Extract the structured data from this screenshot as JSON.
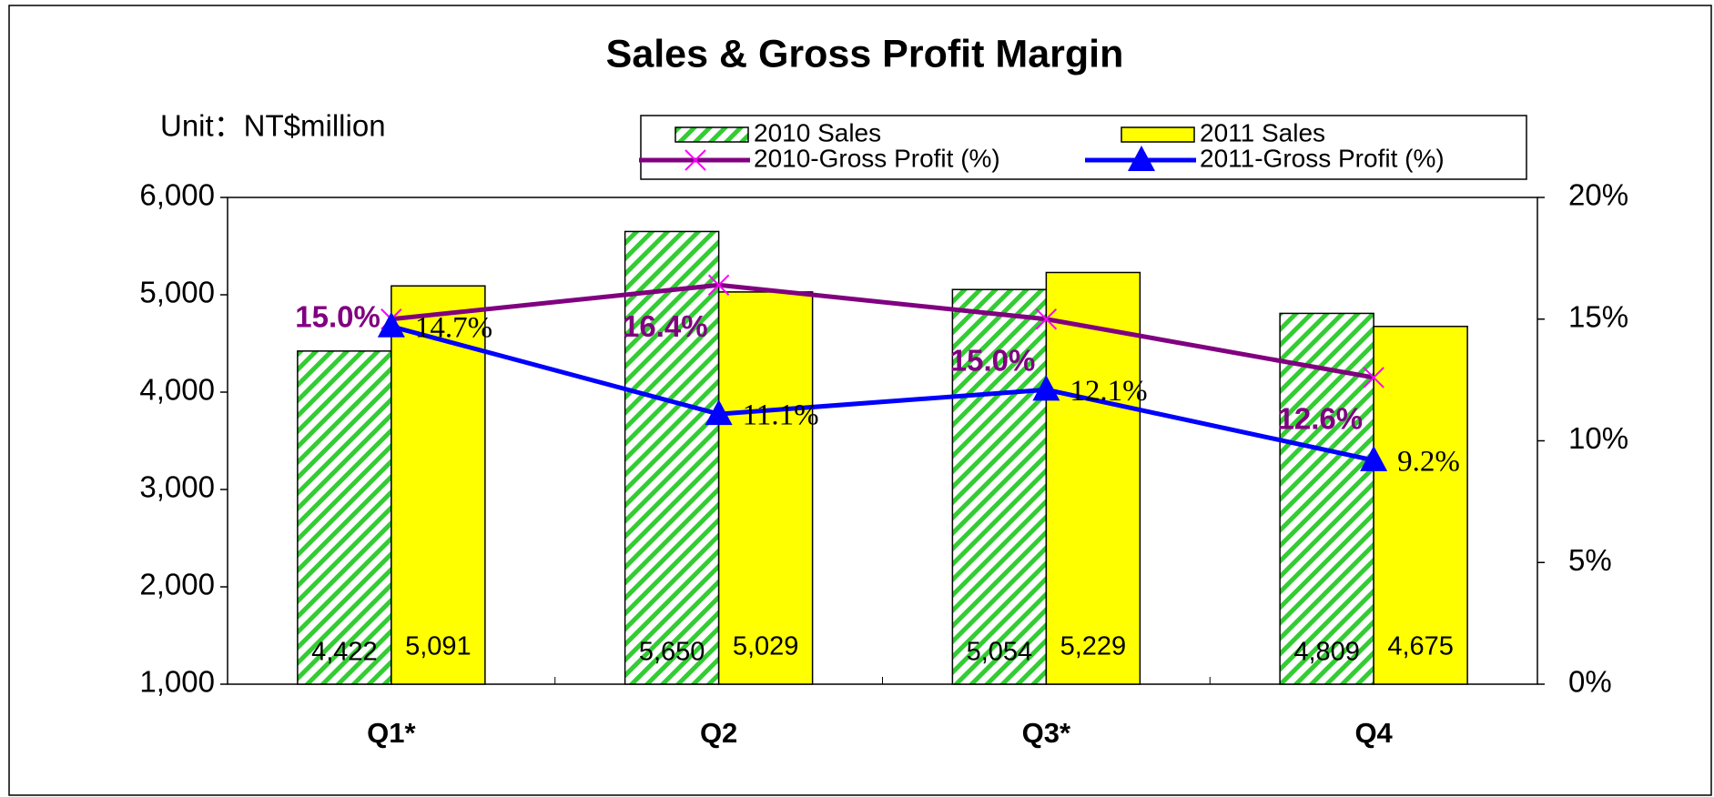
{
  "chart_data": {
    "type": "bar",
    "title": "Sales & Gross Profit Margin",
    "subtitle": "Unit：NT$million",
    "categories": [
      "Q1*",
      "Q2",
      "Q3*",
      "Q4"
    ],
    "series": [
      {
        "name": "2010 Sales",
        "type": "bar",
        "pattern": "hatch",
        "color": "#33cc33",
        "values": [
          4422,
          5650,
          5054,
          4809
        ],
        "value_labels": [
          "4,422",
          "5,650",
          "5,054",
          "4,809"
        ]
      },
      {
        "name": "2011 Sales",
        "type": "bar",
        "color": "#ffff00",
        "values": [
          5091,
          5029,
          5229,
          4675
        ],
        "value_labels": [
          "5,091",
          "5,029",
          "5,229",
          "4,675"
        ]
      },
      {
        "name": "2010-Gross Profit (%)",
        "type": "line",
        "marker": "x",
        "axis": "y2",
        "color": "#800080",
        "values": [
          15.0,
          16.4,
          15.0,
          12.6
        ],
        "value_labels": [
          "15.0%",
          "16.4%",
          "15.0%",
          "12.6%"
        ]
      },
      {
        "name": "2011-Gross Profit (%)",
        "type": "line",
        "marker": "triangle",
        "axis": "y2",
        "color": "#0000ff",
        "values": [
          14.7,
          11.1,
          12.1,
          9.2
        ],
        "value_labels": [
          "14.7%",
          "11.1%",
          "12.1%",
          "9.2%"
        ]
      }
    ],
    "ylim": [
      1000,
      6000
    ],
    "yticks": [
      {
        "value": 1000,
        "label": "1,000"
      },
      {
        "value": 2000,
        "label": "2,000"
      },
      {
        "value": 3000,
        "label": "3,000"
      },
      {
        "value": 4000,
        "label": "4,000"
      },
      {
        "value": 5000,
        "label": "5,000"
      },
      {
        "value": 6000,
        "label": "6,000"
      }
    ],
    "y2lim": [
      0,
      20
    ],
    "y2ticks": [
      {
        "value": 0,
        "label": "0%"
      },
      {
        "value": 5,
        "label": "5%"
      },
      {
        "value": 10,
        "label": "10%"
      },
      {
        "value": 15,
        "label": "15%"
      },
      {
        "value": 20,
        "label": "20%"
      }
    ],
    "grid": false
  }
}
